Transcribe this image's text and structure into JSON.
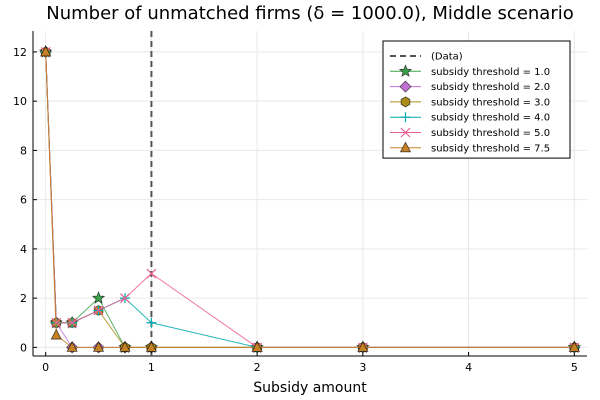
{
  "chart_data": {
    "type": "line",
    "title": "Number of unmatched firms (δ = 1000.0), Middle scenario",
    "xlabel": "Subsidy amount",
    "ylabel": "",
    "xlim": [
      -0.12,
      5.12
    ],
    "ylim": [
      -0.35,
      12.85
    ],
    "xticks": [
      "0",
      "1",
      "2",
      "3",
      "4",
      "5"
    ],
    "xtick_values": [
      0,
      1,
      2,
      3,
      4,
      5
    ],
    "yticks": [
      "0",
      "2",
      "4",
      "6",
      "8",
      "10",
      "12"
    ],
    "ytick_values": [
      0,
      2,
      4,
      6,
      8,
      10,
      12
    ],
    "grid": true,
    "legend_position": "top-right",
    "data_line": {
      "name": "(Data)",
      "x": 1,
      "color": "#555555"
    },
    "x": [
      0,
      0.1,
      0.25,
      0.5,
      0.75,
      1,
      2,
      3,
      5
    ],
    "series": [
      {
        "name": "subsidy threshold = 1.0",
        "marker": "star",
        "color": "#3da44d",
        "values": [
          12,
          1,
          1,
          2,
          0,
          0,
          0,
          0,
          0
        ]
      },
      {
        "name": "subsidy threshold = 2.0",
        "marker": "diamond",
        "color": "#c271d2",
        "values": [
          12,
          1,
          0,
          0,
          0,
          0,
          0,
          0,
          0
        ]
      },
      {
        "name": "subsidy threshold = 3.0",
        "marker": "hexagon",
        "color": "#ac8d18",
        "values": [
          12,
          1,
          1,
          1.5,
          0,
          0,
          0,
          0,
          0
        ]
      },
      {
        "name": "subsidy threshold = 4.0",
        "marker": "plus",
        "color": "#00a9ad",
        "values": [
          12,
          1,
          1,
          1.5,
          2,
          1,
          0,
          0,
          0
        ]
      },
      {
        "name": "subsidy threshold = 5.0",
        "marker": "cross",
        "color": "#ed5e93",
        "values": [
          12,
          1,
          1,
          1.5,
          2,
          3,
          0,
          0,
          0
        ]
      },
      {
        "name": "subsidy threshold = 7.5",
        "marker": "triangle",
        "color": "#c68125",
        "values": [
          12,
          0.5,
          0,
          0,
          0,
          0,
          0,
          0,
          0
        ]
      }
    ]
  }
}
